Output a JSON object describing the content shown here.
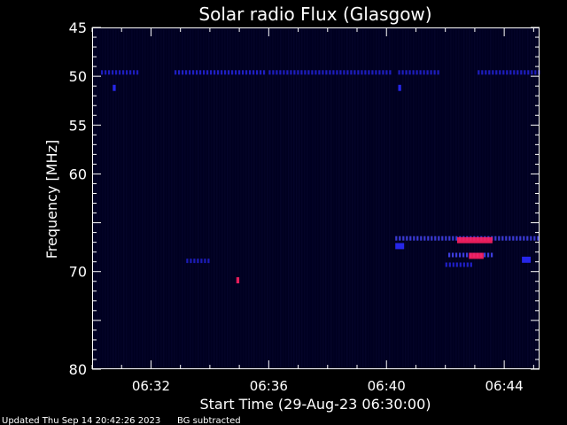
{
  "colors": {
    "background": "#000000",
    "plot_background": "#000020",
    "axes": "#ffffff",
    "text": "#ffffff",
    "weak_emission": "#2a2aff",
    "medium_emission": "#4848ff",
    "strong_emission": "#ff2060"
  },
  "chart_data": {
    "type": "heatmap",
    "title": "Solar radio Flux (Glasgow)",
    "xlabel": "Start Time (29-Aug-23 06:30:00)",
    "ylabel": "Frequency [MHz]",
    "x_unit": "minutes",
    "xlim": [
      0.0,
      15.2
    ],
    "ylim": [
      45,
      80
    ],
    "y_inverted": true,
    "x_ticks": [
      {
        "value": 2,
        "label": "06:32"
      },
      {
        "value": 6,
        "label": "06:36"
      },
      {
        "value": 10,
        "label": "06:40"
      },
      {
        "value": 14,
        "label": "06:44"
      }
    ],
    "x_minor_step": 1,
    "y_ticks": [
      {
        "value": 45,
        "label": "45"
      },
      {
        "value": 50,
        "label": "50"
      },
      {
        "value": 55,
        "label": "55"
      },
      {
        "value": 60,
        "label": "60"
      },
      {
        "value": 70,
        "label": "70"
      },
      {
        "value": 80,
        "label": "80"
      }
    ],
    "y_minor_step": 1,
    "grid": false,
    "emission": [
      {
        "t_start": 0.3,
        "t_end": 1.6,
        "freq": 49.6,
        "intensity": 0.5
      },
      {
        "t_start": 2.8,
        "t_end": 5.9,
        "freq": 49.6,
        "intensity": 0.55
      },
      {
        "t_start": 6.0,
        "t_end": 10.2,
        "freq": 49.6,
        "intensity": 0.5
      },
      {
        "t_start": 10.4,
        "t_end": 11.8,
        "freq": 49.6,
        "intensity": 0.5
      },
      {
        "t_start": 13.1,
        "t_end": 15.2,
        "freq": 49.6,
        "intensity": 0.5
      },
      {
        "t_start": 0.7,
        "t_end": 0.8,
        "freq": 51.1,
        "intensity": 0.6
      },
      {
        "t_start": 10.4,
        "t_end": 10.5,
        "freq": 51.1,
        "intensity": 0.5
      },
      {
        "t_start": 3.2,
        "t_end": 4.0,
        "freq": 68.9,
        "intensity": 0.45
      },
      {
        "t_start": 4.9,
        "t_end": 5.0,
        "freq": 70.8,
        "intensity": 1.0
      },
      {
        "t_start": 10.3,
        "t_end": 15.2,
        "freq": 66.6,
        "intensity": 0.7
      },
      {
        "t_start": 12.4,
        "t_end": 13.6,
        "freq": 66.7,
        "intensity": 1.0
      },
      {
        "t_start": 10.3,
        "t_end": 10.6,
        "freq": 67.3,
        "intensity": 0.5
      },
      {
        "t_start": 12.1,
        "t_end": 13.6,
        "freq": 68.3,
        "intensity": 0.8
      },
      {
        "t_start": 12.8,
        "t_end": 13.3,
        "freq": 68.3,
        "intensity": 1.0
      },
      {
        "t_start": 12.0,
        "t_end": 12.9,
        "freq": 69.3,
        "intensity": 0.6
      },
      {
        "t_start": 14.6,
        "t_end": 14.9,
        "freq": 68.7,
        "intensity": 0.45
      }
    ]
  },
  "footer": {
    "updated": "Updated Thu Sep 14 20:42:26 2023",
    "status": "BG subtracted"
  }
}
